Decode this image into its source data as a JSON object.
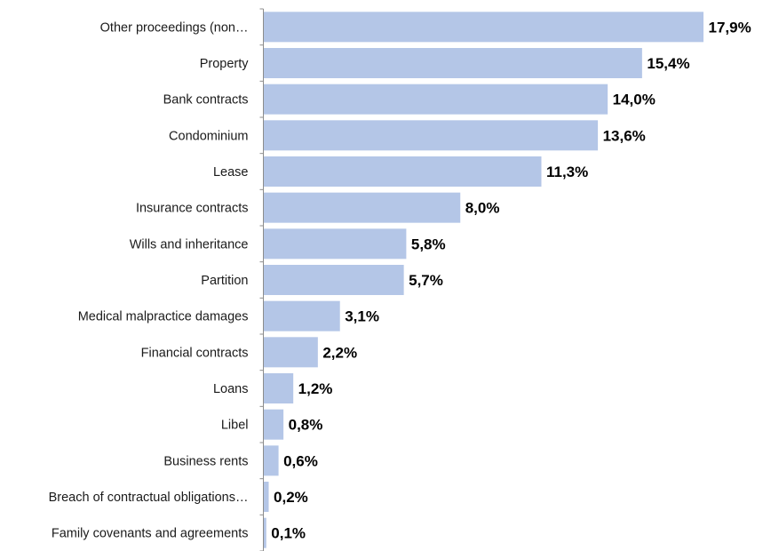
{
  "colors": {
    "bar": "#b4c6e7",
    "axis": "#8c8c8c",
    "text": "#1a1a1a",
    "value_text": "#000000"
  },
  "chart_data": {
    "type": "bar",
    "orientation": "horizontal",
    "categories": [
      "Other proceedings (non…",
      "Property",
      "Bank contracts",
      "Condominium",
      "Lease",
      "Insurance contracts",
      "Wills  and inheritance",
      "Partition",
      "Medical malpractice damages",
      "Financial contracts",
      "Loans",
      "Libel",
      "Business rents",
      "Breach of contractual obligations…",
      "Family covenants and agreements"
    ],
    "values": [
      17.9,
      15.4,
      14.0,
      13.6,
      11.3,
      8.0,
      5.8,
      5.7,
      3.1,
      2.2,
      1.2,
      0.8,
      0.6,
      0.2,
      0.1
    ],
    "value_labels": [
      "17,9%",
      "15,4%",
      "14,0%",
      "13,6%",
      "11,3%",
      "8,0%",
      "5,8%",
      "5,7%",
      "3,1%",
      "2,2%",
      "1,2%",
      "0,8%",
      "0,6%",
      "0,2%",
      "0,1%"
    ],
    "title": "",
    "xlabel": "",
    "ylabel": "",
    "xlim": [
      0,
      17.9
    ],
    "grid": false,
    "legend": "none"
  }
}
